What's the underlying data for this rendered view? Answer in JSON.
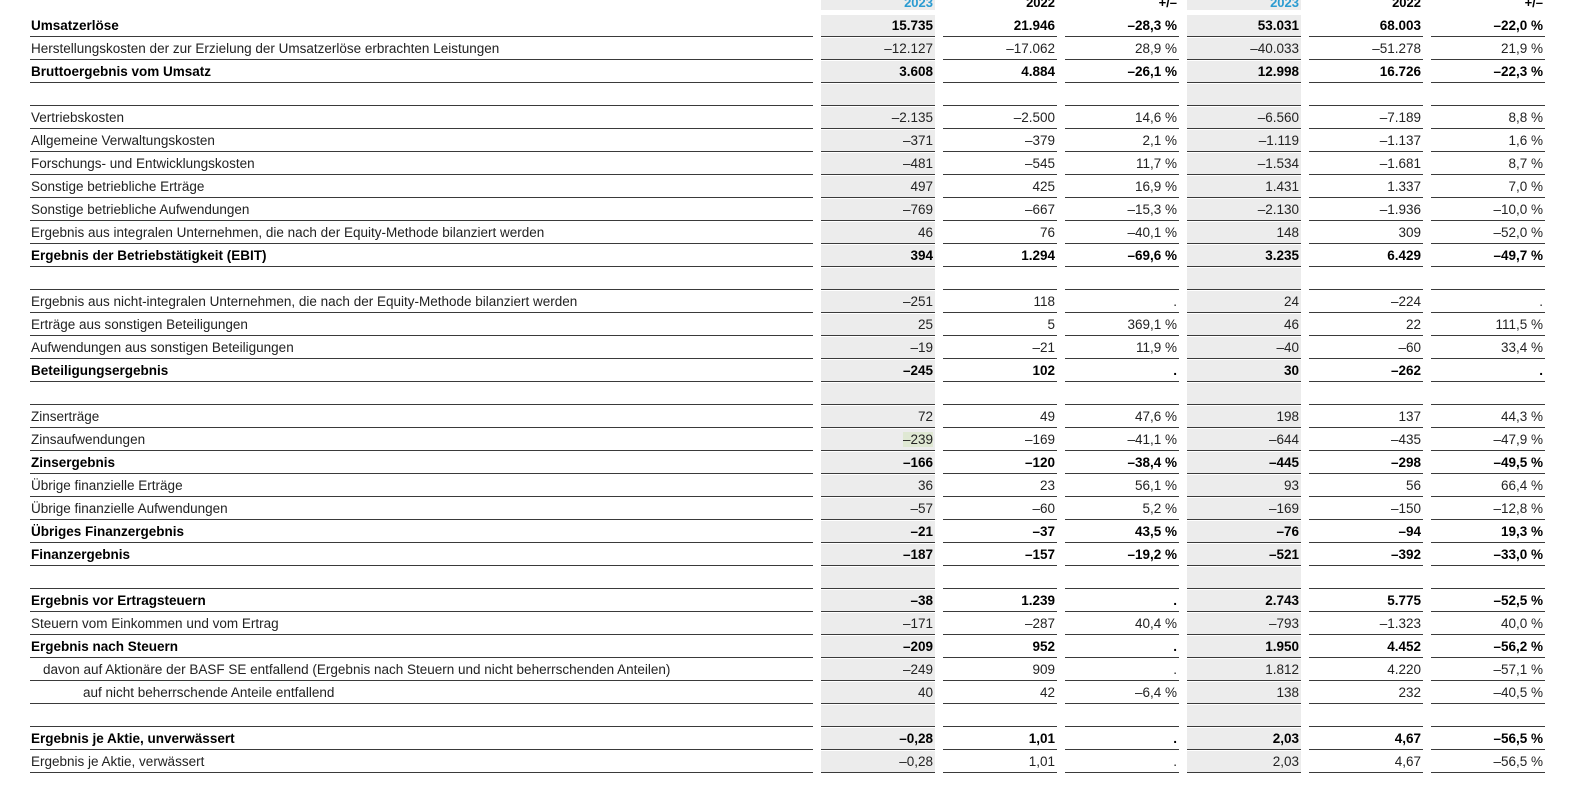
{
  "columns": [
    "2023",
    "2022",
    "+/–",
    "2023",
    "2022",
    "+/–"
  ],
  "rows": [
    {
      "type": "row",
      "bold": true,
      "label": "Umsatzerlöse",
      "unit": "",
      "values": [
        "15.735",
        "21.946",
        "–28,3 %",
        "53.031",
        "68.003",
        "–22,0 %"
      ]
    },
    {
      "type": "row",
      "bold": false,
      "label": "Herstellungskosten der zur Erzielung der Umsatzerlöse erbrachten Leistungen",
      "unit": "",
      "values": [
        "–12.127",
        "–17.062",
        "28,9 %",
        "–40.033",
        "–51.278",
        "21,9 %"
      ]
    },
    {
      "type": "row",
      "bold": true,
      "label": "Bruttoergebnis vom Umsatz",
      "unit": "",
      "values": [
        "3.608",
        "4.884",
        "–26,1 %",
        "12.998",
        "16.726",
        "–22,3 %"
      ]
    },
    {
      "type": "spacer"
    },
    {
      "type": "row",
      "bold": false,
      "label": "Vertriebskosten",
      "unit": "",
      "values": [
        "–2.135",
        "–2.500",
        "14,6 %",
        "–6.560",
        "–7.189",
        "8,8 %"
      ]
    },
    {
      "type": "row",
      "bold": false,
      "label": "Allgemeine Verwaltungskosten",
      "unit": "",
      "values": [
        "–371",
        "–379",
        "2,1 %",
        "–1.119",
        "–1.137",
        "1,6 %"
      ]
    },
    {
      "type": "row",
      "bold": false,
      "label": "Forschungs- und Entwicklungskosten",
      "unit": "",
      "values": [
        "–481",
        "–545",
        "11,7 %",
        "–1.534",
        "–1.681",
        "8,7 %"
      ]
    },
    {
      "type": "row",
      "bold": false,
      "label": "Sonstige betriebliche Erträge",
      "unit": "",
      "values": [
        "497",
        "425",
        "16,9 %",
        "1.431",
        "1.337",
        "7,0 %"
      ]
    },
    {
      "type": "row",
      "bold": false,
      "label": "Sonstige betriebliche Aufwendungen",
      "unit": "",
      "values": [
        "–769",
        "–667",
        "–15,3 %",
        "–2.130",
        "–1.936",
        "–10,0 %"
      ]
    },
    {
      "type": "row",
      "bold": false,
      "label": "Ergebnis aus integralen Unternehmen, die nach der Equity-Methode bilanziert werden",
      "unit": "",
      "values": [
        "46",
        "76",
        "–40,1 %",
        "148",
        "309",
        "–52,0 %"
      ]
    },
    {
      "type": "row",
      "bold": true,
      "label": "Ergebnis der Betriebstätigkeit (EBIT)",
      "unit": "",
      "values": [
        "394",
        "1.294",
        "–69,6 %",
        "3.235",
        "6.429",
        "–49,7 %"
      ]
    },
    {
      "type": "spacer"
    },
    {
      "type": "row",
      "bold": false,
      "label": "Ergebnis aus nicht-integralen Unternehmen, die nach der Equity-Methode bilanziert werden",
      "unit": "",
      "values": [
        "–251",
        "118",
        ".",
        "24",
        "–224",
        "."
      ]
    },
    {
      "type": "row",
      "bold": false,
      "label": "Erträge aus sonstigen Beteiligungen",
      "unit": "",
      "values": [
        "25",
        "5",
        "369,1 %",
        "46",
        "22",
        "111,5 %"
      ]
    },
    {
      "type": "row",
      "bold": false,
      "label": "Aufwendungen aus sonstigen Beteiligungen",
      "unit": "",
      "values": [
        "–19",
        "–21",
        "11,9 %",
        "–40",
        "–60",
        "33,4 %"
      ]
    },
    {
      "type": "row",
      "bold": true,
      "label": "Beteiligungsergebnis",
      "unit": "",
      "values": [
        "–245",
        "102",
        ".",
        "30",
        "–262",
        "."
      ]
    },
    {
      "type": "spacer"
    },
    {
      "type": "row",
      "bold": false,
      "label": "Zinserträge",
      "unit": "",
      "values": [
        "72",
        "49",
        "47,6 %",
        "198",
        "137",
        "44,3 %"
      ]
    },
    {
      "type": "row",
      "bold": false,
      "label": "Zinsaufwendungen",
      "unit": "",
      "values": [
        "–239",
        "–169",
        "–41,1 %",
        "–644",
        "–435",
        "–47,9 %"
      ],
      "highlight": 0
    },
    {
      "type": "row",
      "bold": true,
      "label": "Zinsergebnis",
      "unit": "",
      "values": [
        "–166",
        "–120",
        "–38,4 %",
        "–445",
        "–298",
        "–49,5 %"
      ]
    },
    {
      "type": "row",
      "bold": false,
      "label": "Übrige finanzielle Erträge",
      "unit": "",
      "values": [
        "36",
        "23",
        "56,1 %",
        "93",
        "56",
        "66,4 %"
      ]
    },
    {
      "type": "row",
      "bold": false,
      "label": "Übrige finanzielle Aufwendungen",
      "unit": "",
      "values": [
        "–57",
        "–60",
        "5,2 %",
        "–169",
        "–150",
        "–12,8 %"
      ]
    },
    {
      "type": "row",
      "bold": true,
      "label": "Übriges Finanzergebnis",
      "unit": "",
      "values": [
        "–21",
        "–37",
        "43,5 %",
        "–76",
        "–94",
        "19,3 %"
      ]
    },
    {
      "type": "row",
      "bold": true,
      "label": "Finanzergebnis",
      "unit": "",
      "values": [
        "–187",
        "–157",
        "–19,2 %",
        "–521",
        "–392",
        "–33,0 %"
      ]
    },
    {
      "type": "spacer"
    },
    {
      "type": "row",
      "bold": true,
      "label": "Ergebnis vor Ertragsteuern",
      "unit": "",
      "values": [
        "–38",
        "1.239",
        ".",
        "2.743",
        "5.775",
        "–52,5 %"
      ]
    },
    {
      "type": "row",
      "bold": false,
      "label": "Steuern vom Einkommen und vom Ertrag",
      "unit": "",
      "values": [
        "–171",
        "–287",
        "40,4 %",
        "–793",
        "–1.323",
        "40,0 %"
      ]
    },
    {
      "type": "row",
      "bold": true,
      "label": "Ergebnis nach Steuern",
      "unit": "",
      "values": [
        "–209",
        "952",
        ".",
        "1.950",
        "4.452",
        "–56,2 %"
      ]
    },
    {
      "type": "row",
      "bold": false,
      "indent": 1,
      "label": "davon auf Aktionäre der BASF SE entfallend (Ergebnis nach Steuern und nicht beherrschenden Anteilen)",
      "unit": "",
      "values": [
        "–249",
        "909",
        ".",
        "1.812",
        "4.220",
        "–57,1 %"
      ]
    },
    {
      "type": "row",
      "bold": false,
      "indent": 2,
      "label": "auf nicht beherrschende Anteile entfallend",
      "unit": "",
      "values": [
        "40",
        "42",
        "–6,4 %",
        "138",
        "232",
        "–40,5 %"
      ]
    },
    {
      "type": "spacer"
    },
    {
      "type": "row",
      "bold": true,
      "label": "Ergebnis je Aktie, unverwässert",
      "unit": "€",
      "values": [
        "–0,28",
        "1,01",
        ".",
        "2,03",
        "4,67",
        "–56,5 %"
      ]
    },
    {
      "type": "row",
      "bold": false,
      "label": "Ergebnis je Aktie, verwässert",
      "unit": "€",
      "values": [
        "–0,28",
        "1,01",
        ".",
        "2,03",
        "4,67",
        "–56,5 %"
      ]
    }
  ]
}
